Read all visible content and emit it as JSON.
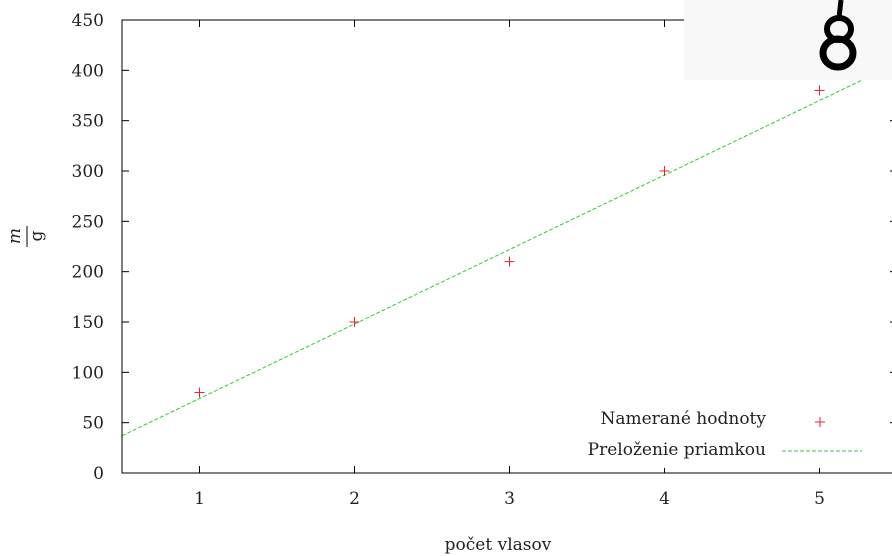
{
  "chart_data": {
    "type": "scatter",
    "xlabel": "počet vlasov",
    "ylabel_top": "m",
    "ylabel_bottom": "g",
    "xlim": [
      0.5,
      5.5
    ],
    "ylim": [
      0,
      450
    ],
    "x_ticks": [
      1,
      2,
      3,
      4,
      5
    ],
    "y_ticks": [
      0,
      50,
      100,
      150,
      200,
      250,
      300,
      350,
      400,
      450
    ],
    "grid": false,
    "legend_position": "bottom-right",
    "series": [
      {
        "name": "Namerané hodnoty",
        "kind": "points",
        "marker": "+",
        "color": "#e8232f",
        "x": [
          1,
          2,
          3,
          4,
          5
        ],
        "y": [
          80,
          150,
          210,
          300,
          380
        ]
      },
      {
        "name": "Preloženie priamkou",
        "kind": "line",
        "style": "dashed",
        "color": "#33cc33",
        "slope": 74.0,
        "intercept": 0.0
      }
    ],
    "annotation_icon": "figure-eight-weight-icon"
  }
}
